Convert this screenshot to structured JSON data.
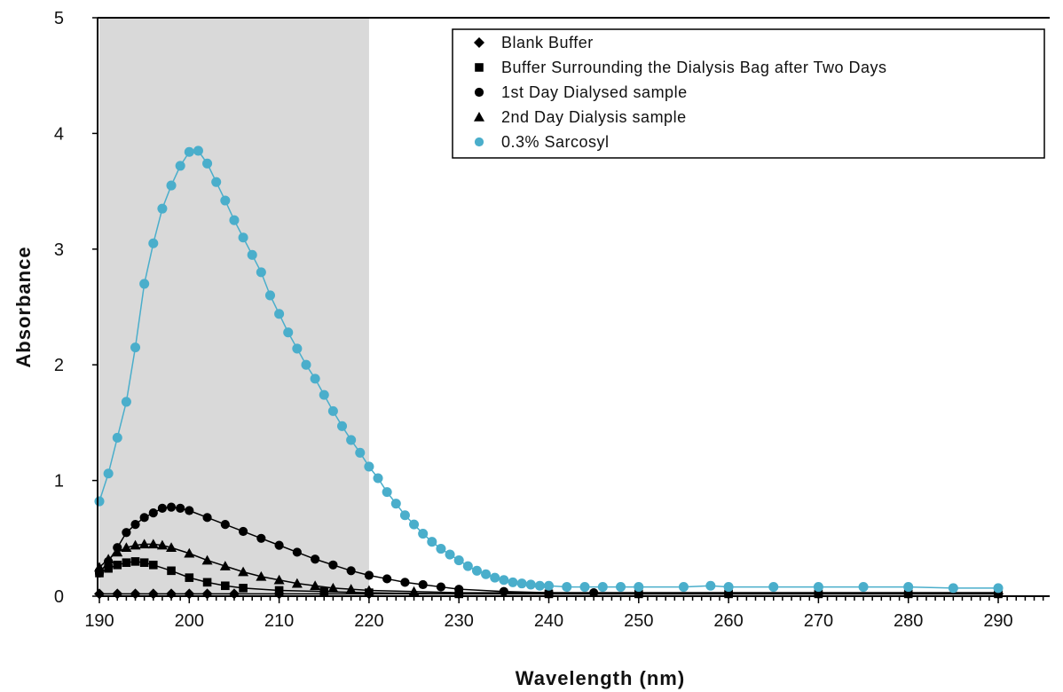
{
  "chart_data": {
    "type": "line",
    "xlabel": "Wavelength (nm)",
    "ylabel": "Absorbance",
    "xlim": [
      190,
      290
    ],
    "ylim": [
      0,
      5
    ],
    "x_ticks": [
      "190",
      "200",
      "210",
      "220",
      "230",
      "240",
      "250",
      "260",
      "270",
      "280",
      "290"
    ],
    "y_ticks": [
      "0",
      "1",
      "2",
      "3",
      "4",
      "5"
    ],
    "grid": false,
    "shaded_region": {
      "x_start": 190,
      "x_end": 220,
      "color": "#d9d9d9"
    },
    "legend_position": "top-right",
    "series": [
      {
        "name": "Blank Buffer",
        "marker": "diamond",
        "color": "#000000",
        "x": [
          190,
          192,
          194,
          196,
          198,
          200,
          202,
          205,
          210,
          220,
          230,
          240,
          250,
          260,
          270,
          280,
          290
        ],
        "y": [
          0.02,
          0.02,
          0.02,
          0.02,
          0.02,
          0.02,
          0.02,
          0.02,
          0.02,
          0.02,
          0.02,
          0.02,
          0.02,
          0.02,
          0.02,
          0.02,
          0.02
        ]
      },
      {
        "name": "Buffer Surrounding the Dialysis Bag after Two Days",
        "marker": "square",
        "color": "#000000",
        "x": [
          190,
          191,
          192,
          193,
          194,
          195,
          196,
          198,
          200,
          202,
          204,
          206,
          210,
          215,
          220,
          230,
          240,
          250,
          260,
          270,
          280,
          290
        ],
        "y": [
          0.2,
          0.24,
          0.27,
          0.29,
          0.3,
          0.29,
          0.27,
          0.22,
          0.16,
          0.12,
          0.09,
          0.07,
          0.05,
          0.04,
          0.03,
          0.02,
          0.02,
          0.02,
          0.02,
          0.02,
          0.02,
          0.02
        ]
      },
      {
        "name": "1st Day Dialysed sample",
        "marker": "circle",
        "color": "#000000",
        "x": [
          190,
          191,
          192,
          193,
          194,
          195,
          196,
          197,
          198,
          199,
          200,
          202,
          204,
          206,
          208,
          210,
          212,
          214,
          216,
          218,
          220,
          222,
          224,
          226,
          228,
          230,
          235,
          240,
          245,
          250,
          260,
          270,
          280,
          290
        ],
        "y": [
          0.2,
          0.3,
          0.42,
          0.55,
          0.62,
          0.68,
          0.72,
          0.76,
          0.77,
          0.76,
          0.74,
          0.68,
          0.62,
          0.56,
          0.5,
          0.44,
          0.38,
          0.32,
          0.27,
          0.22,
          0.18,
          0.15,
          0.12,
          0.1,
          0.08,
          0.06,
          0.04,
          0.03,
          0.03,
          0.03,
          0.03,
          0.03,
          0.03,
          0.03
        ]
      },
      {
        "name": "2nd Day Dialysis sample",
        "marker": "triangle",
        "color": "#000000",
        "x": [
          190,
          191,
          192,
          193,
          194,
          195,
          196,
          197,
          198,
          200,
          202,
          204,
          206,
          208,
          210,
          212,
          214,
          216,
          218,
          220,
          225,
          230,
          240,
          250,
          260,
          270,
          280,
          290
        ],
        "y": [
          0.25,
          0.32,
          0.38,
          0.42,
          0.44,
          0.45,
          0.45,
          0.44,
          0.42,
          0.37,
          0.31,
          0.26,
          0.21,
          0.17,
          0.14,
          0.11,
          0.09,
          0.07,
          0.06,
          0.05,
          0.04,
          0.03,
          0.03,
          0.03,
          0.03,
          0.03,
          0.03,
          0.03
        ]
      },
      {
        "name": "0.3% Sarcosyl",
        "marker": "circle",
        "color": "#4aaecb",
        "x": [
          190,
          191,
          192,
          193,
          194,
          195,
          196,
          197,
          198,
          199,
          200,
          201,
          202,
          203,
          204,
          205,
          206,
          207,
          208,
          209,
          210,
          211,
          212,
          213,
          214,
          215,
          216,
          217,
          218,
          219,
          220,
          221,
          222,
          223,
          224,
          225,
          226,
          227,
          228,
          229,
          230,
          231,
          232,
          233,
          234,
          235,
          236,
          237,
          238,
          239,
          240,
          242,
          244,
          246,
          248,
          250,
          255,
          258,
          260,
          265,
          270,
          275,
          280,
          285,
          290
        ],
        "y": [
          0.82,
          1.06,
          1.37,
          1.68,
          2.15,
          2.7,
          3.05,
          3.35,
          3.55,
          3.72,
          3.84,
          3.85,
          3.74,
          3.58,
          3.42,
          3.25,
          3.1,
          2.95,
          2.8,
          2.6,
          2.44,
          2.28,
          2.14,
          2.0,
          1.88,
          1.74,
          1.6,
          1.47,
          1.35,
          1.24,
          1.12,
          1.02,
          0.9,
          0.8,
          0.7,
          0.62,
          0.54,
          0.47,
          0.41,
          0.36,
          0.31,
          0.26,
          0.22,
          0.19,
          0.16,
          0.14,
          0.12,
          0.11,
          0.1,
          0.09,
          0.09,
          0.08,
          0.08,
          0.08,
          0.08,
          0.08,
          0.08,
          0.09,
          0.08,
          0.08,
          0.08,
          0.08,
          0.08,
          0.07,
          0.07
        ]
      }
    ]
  }
}
